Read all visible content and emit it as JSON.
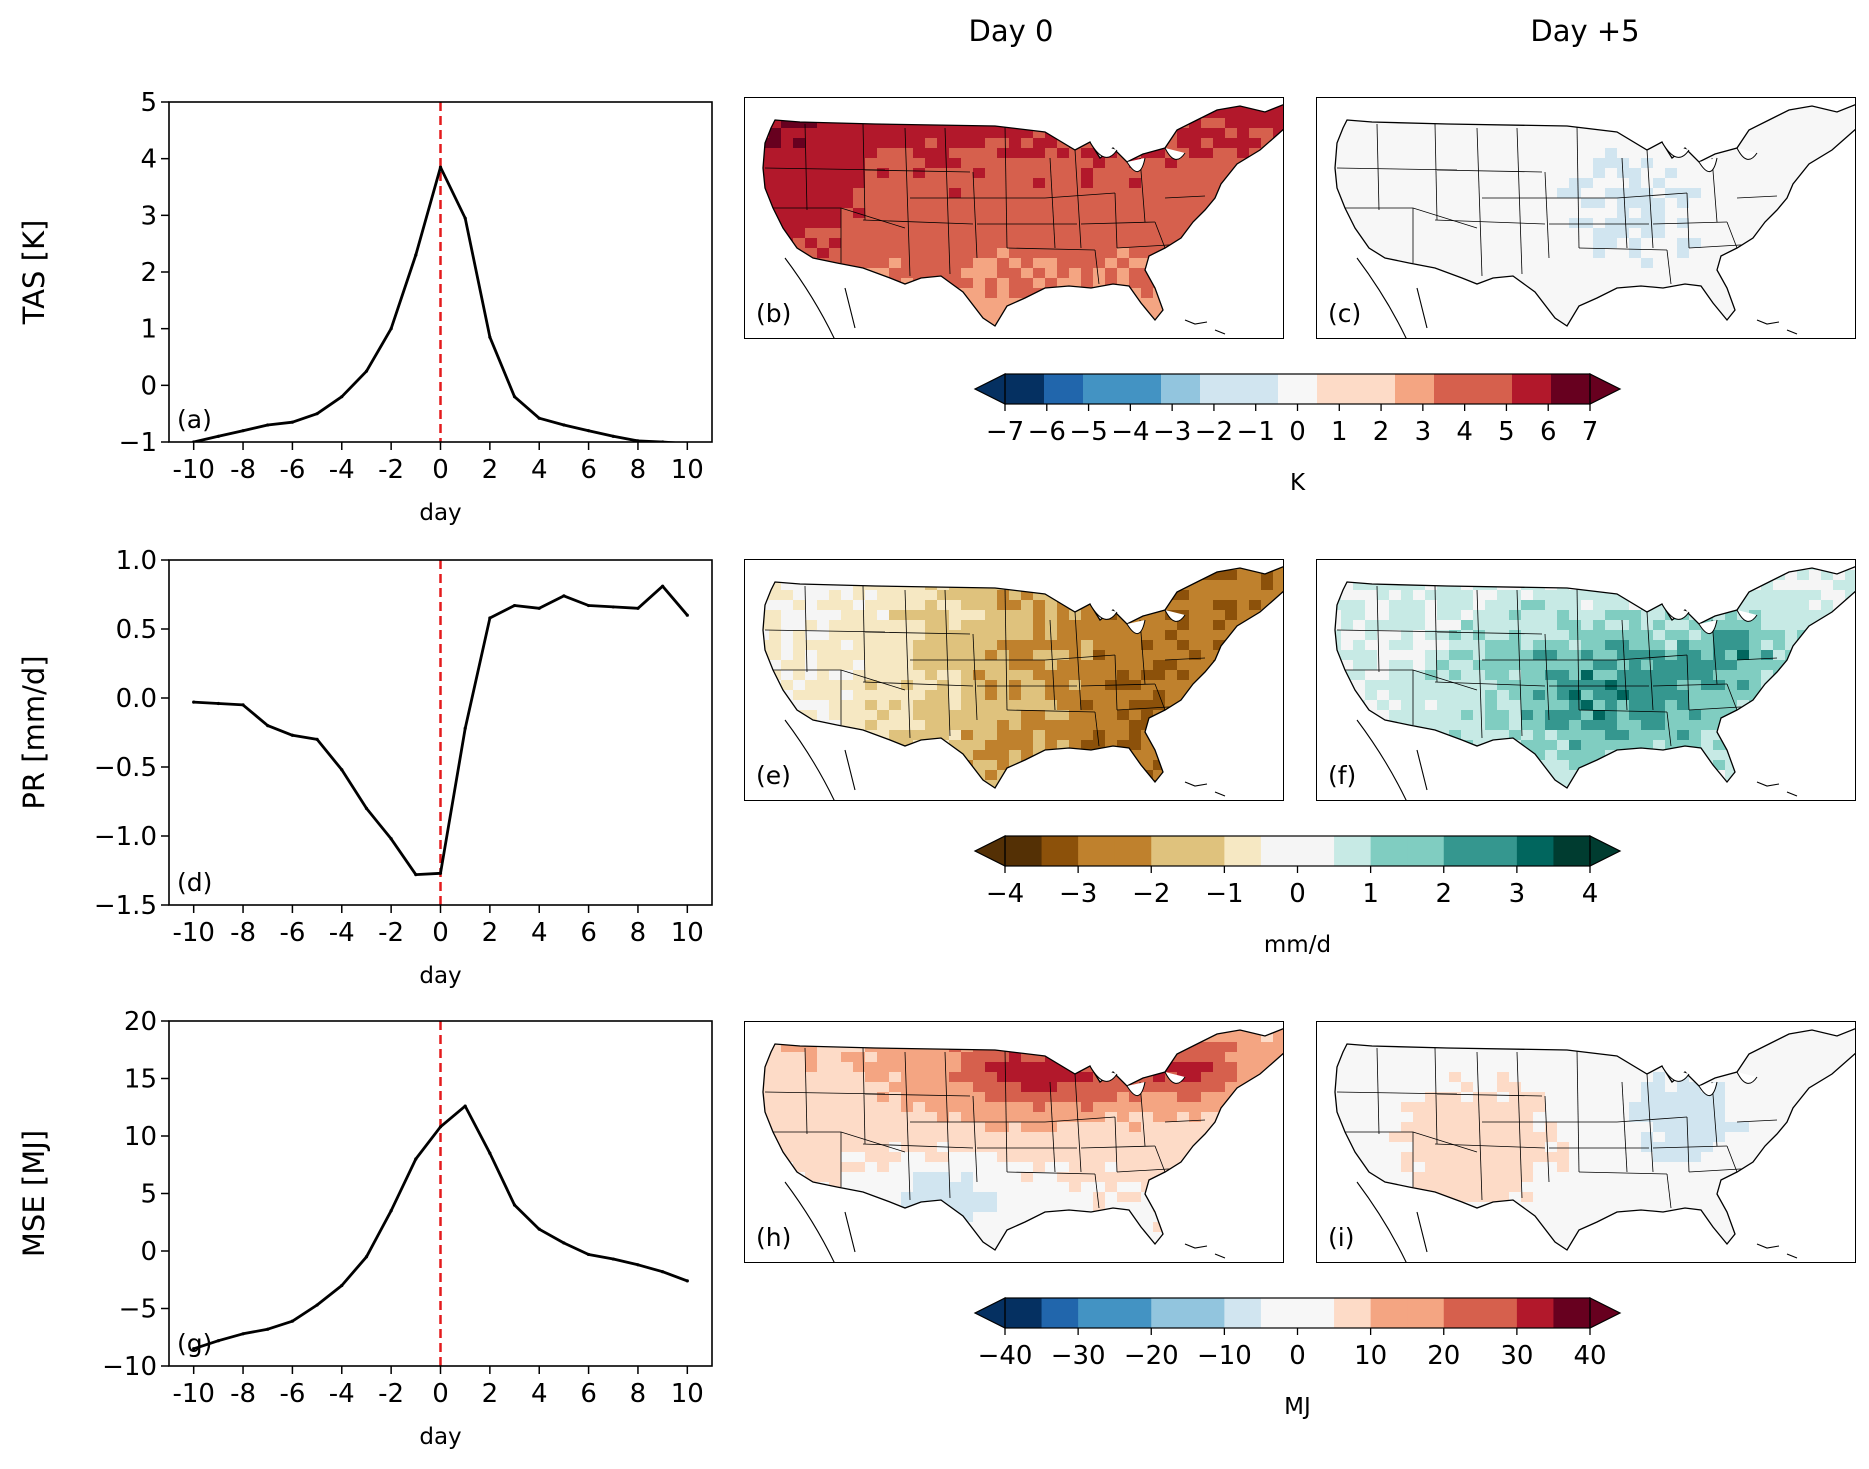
{
  "columns": {
    "day0": "Day 0",
    "day5": "Day +5"
  },
  "colors": {
    "line": "#000000",
    "event_marker": "#e41a1c",
    "rdbu": [
      "#053061",
      "#2166ac",
      "#4393c3",
      "#92c5de",
      "#d1e5f0",
      "#f7f7f7",
      "#fddbc7",
      "#f4a582",
      "#d6604d",
      "#b2182b",
      "#67001f"
    ],
    "brbg": [
      "#543005",
      "#8c510a",
      "#bf812d",
      "#dfc27d",
      "#f6e8c3",
      "#f5f5f5",
      "#c7eae5",
      "#80cdc1",
      "#35978f",
      "#01665e",
      "#003c30"
    ]
  },
  "chart_data": [
    {
      "type": "line",
      "id": "a",
      "panel_label": "(a)",
      "ylabel": "TAS [K]",
      "xlabel": "day",
      "x": [
        -10,
        -9,
        -8,
        -7,
        -6,
        -5,
        -4,
        -3,
        -2,
        -1,
        0,
        1,
        2,
        3,
        4,
        5,
        6,
        7,
        8,
        9,
        10
      ],
      "values": [
        -1.0,
        -0.9,
        -0.8,
        -0.7,
        -0.65,
        -0.5,
        -0.2,
        0.25,
        1.0,
        2.3,
        3.85,
        2.95,
        0.85,
        -0.2,
        -0.58,
        -0.7,
        -0.8,
        -0.9,
        -0.98,
        -1.0,
        -1.03
      ],
      "xlim": [
        -11,
        11
      ],
      "ylim": [
        -1,
        5
      ],
      "xticks": [
        -10,
        -8,
        -6,
        -4,
        -2,
        0,
        2,
        4,
        6,
        8,
        10
      ],
      "xtick_labels": [
        "-10",
        "-8",
        "-6",
        "-4",
        "-2",
        "0",
        "2",
        "4",
        "6",
        "8",
        "10"
      ],
      "yticks": [
        -1,
        0,
        1,
        2,
        3,
        4,
        5
      ],
      "ytick_labels": [
        "−1",
        "0",
        "1",
        "2",
        "3",
        "4",
        "5"
      ],
      "vline_x": 0
    },
    {
      "type": "line",
      "id": "d",
      "panel_label": "(d)",
      "ylabel": "PR [mm/d]",
      "xlabel": "day",
      "x": [
        -10,
        -9,
        -8,
        -7,
        -6,
        -5,
        -4,
        -3,
        -2,
        -1,
        0,
        1,
        2,
        3,
        4,
        5,
        6,
        7,
        8,
        9,
        10
      ],
      "values": [
        -0.03,
        -0.04,
        -0.05,
        -0.2,
        -0.27,
        -0.3,
        -0.52,
        -0.8,
        -1.02,
        -1.28,
        -1.27,
        -0.22,
        0.58,
        0.67,
        0.65,
        0.74,
        0.67,
        0.66,
        0.65,
        0.81,
        0.6
      ],
      "xlim": [
        -11,
        11
      ],
      "ylim": [
        -1.5,
        1.0
      ],
      "xticks": [
        -10,
        -8,
        -6,
        -4,
        -2,
        0,
        2,
        4,
        6,
        8,
        10
      ],
      "xtick_labels": [
        "-10",
        "-8",
        "-6",
        "-4",
        "-2",
        "0",
        "2",
        "4",
        "6",
        "8",
        "10"
      ],
      "yticks": [
        -1.5,
        -1.0,
        -0.5,
        0.0,
        0.5,
        1.0
      ],
      "ytick_labels": [
        "−1.5",
        "−1.0",
        "−0.5",
        "0.0",
        "0.5",
        "1.0"
      ],
      "vline_x": 0
    },
    {
      "type": "line",
      "id": "g",
      "panel_label": "(g)",
      "ylabel": "MSE [MJ]",
      "xlabel": "day",
      "x": [
        -10,
        -9,
        -8,
        -7,
        -6,
        -5,
        -4,
        -3,
        -2,
        -1,
        0,
        1,
        2,
        3,
        4,
        5,
        6,
        7,
        8,
        9,
        10
      ],
      "values": [
        -8.5,
        -7.8,
        -7.2,
        -6.8,
        -6.1,
        -4.7,
        -3.0,
        -0.5,
        3.5,
        8.0,
        10.8,
        12.6,
        8.5,
        4.0,
        1.9,
        0.7,
        -0.3,
        -0.7,
        -1.2,
        -1.8,
        -2.6
      ],
      "xlim": [
        -11,
        11
      ],
      "ylim": [
        -10,
        20
      ],
      "xticks": [
        -10,
        -8,
        -6,
        -4,
        -2,
        0,
        2,
        4,
        6,
        8,
        10
      ],
      "xtick_labels": [
        "-10",
        "-8",
        "-6",
        "-4",
        "-2",
        "0",
        "2",
        "4",
        "6",
        "8",
        "10"
      ],
      "yticks": [
        -10,
        -5,
        0,
        5,
        10,
        15,
        20
      ],
      "ytick_labels": [
        "−10",
        "−5",
        "0",
        "5",
        "10",
        "15",
        "20"
      ],
      "vline_x": 0
    },
    {
      "type": "colorbar",
      "id": "cb1",
      "label": "K",
      "cmap": "rdbu",
      "range": [
        -7,
        7
      ],
      "n_bins": 15,
      "extend": "both",
      "ticks": [
        -7,
        -6,
        -5,
        -4,
        -3,
        -2,
        -1,
        0,
        1,
        2,
        3,
        4,
        5,
        6,
        7
      ],
      "tick_labels": [
        "−7",
        "−6",
        "−5",
        "−4",
        "−3",
        "−2",
        "−1",
        "0",
        "1",
        "2",
        "3",
        "4",
        "5",
        "6",
        "7"
      ]
    },
    {
      "type": "colorbar",
      "id": "cb2",
      "label": "mm/d",
      "cmap": "brbg",
      "range": [
        -4,
        4
      ],
      "n_bins": 16,
      "extend": "both",
      "ticks": [
        -4,
        -3,
        -2,
        -1,
        0,
        1,
        2,
        3,
        4
      ],
      "tick_labels": [
        "−4",
        "−3",
        "−2",
        "−1",
        "0",
        "1",
        "2",
        "3",
        "4"
      ]
    },
    {
      "type": "colorbar",
      "id": "cb3",
      "label": "MJ",
      "cmap": "rdbu",
      "range": [
        -40,
        40
      ],
      "n_bins": 16,
      "extend": "both",
      "ticks": [
        -40,
        -30,
        -20,
        -10,
        0,
        10,
        20,
        30,
        40
      ],
      "tick_labels": [
        "−40",
        "−30",
        "−20",
        "−10",
        "0",
        "10",
        "20",
        "30",
        "40"
      ]
    },
    {
      "type": "heatmap",
      "id": "b",
      "panel_label": "(b)",
      "column": "Day 0",
      "variable": "TAS",
      "units": "K",
      "pattern": "warm-north-west",
      "intensity": 0.85
    },
    {
      "type": "heatmap",
      "id": "c",
      "panel_label": "(c)",
      "column": "Day +5",
      "variable": "TAS",
      "units": "K",
      "pattern": "weak-cool",
      "intensity": 0.3
    },
    {
      "type": "heatmap",
      "id": "e",
      "panel_label": "(e)",
      "column": "Day 0",
      "variable": "PR",
      "units": "mm/d",
      "pattern": "dry-east",
      "intensity": 0.75
    },
    {
      "type": "heatmap",
      "id": "f",
      "panel_label": "(f)",
      "column": "Day +5",
      "variable": "PR",
      "units": "mm/d",
      "pattern": "wet-south-east",
      "intensity": 0.8
    },
    {
      "type": "heatmap",
      "id": "h",
      "panel_label": "(h)",
      "column": "Day 0",
      "variable": "MSE",
      "units": "MJ",
      "pattern": "warm-great-lakes",
      "intensity": 0.8
    },
    {
      "type": "heatmap",
      "id": "i",
      "panel_label": "(i)",
      "column": "Day +5",
      "variable": "MSE",
      "units": "MJ",
      "pattern": "warm-southwest-cool-east",
      "intensity": 0.45
    }
  ]
}
